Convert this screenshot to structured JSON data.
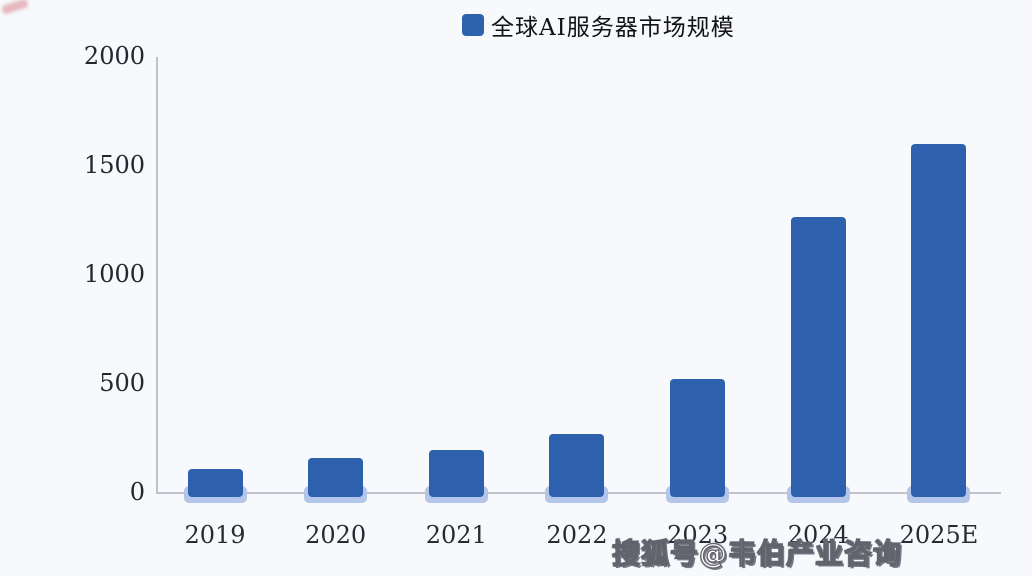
{
  "page": {
    "background": "#f7f9fc"
  },
  "legend": {
    "label": "全球AI服务器市场规模",
    "marker_color": "#2d63ad"
  },
  "watermark": {
    "text": "搜狐号@韦伯产业咨询"
  },
  "chart_data": {
    "type": "bar",
    "title": "全球AI服务器市场规模",
    "categories": [
      "2019",
      "2020",
      "2021",
      "2022",
      "2023",
      "2024",
      "2025E"
    ],
    "values": [
      110,
      160,
      195,
      270,
      525,
      1265,
      1600
    ],
    "xlabel": "",
    "ylabel": "",
    "ylim": [
      0,
      2000
    ],
    "yticks": [
      0,
      500,
      1000,
      1500,
      2000
    ],
    "grid": false,
    "legend_position": "top-center",
    "bar_color": "#2d61ad",
    "bar_base_color": "#b3c5e8",
    "axis_color": "#bfc1cb"
  }
}
